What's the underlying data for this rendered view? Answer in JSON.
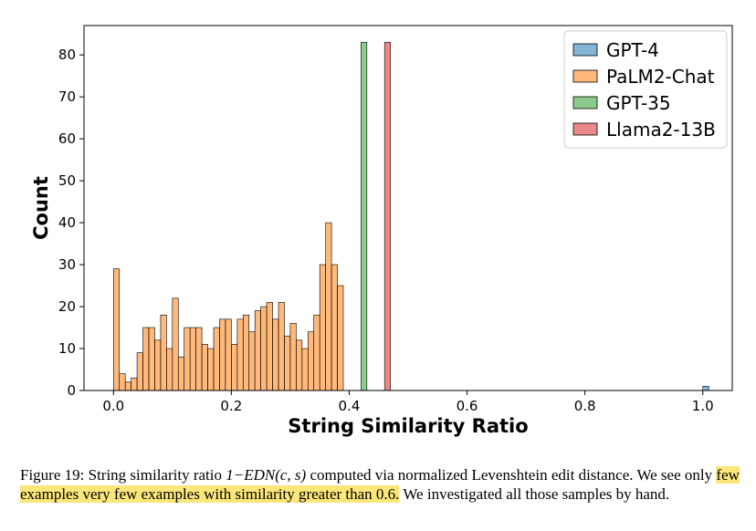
{
  "chart_data": {
    "type": "histogram",
    "xlabel": "String Similarity Ratio",
    "ylabel": "Count",
    "xlim": [
      -0.05,
      1.05
    ],
    "ylim": [
      0,
      87
    ],
    "xticks": [
      "0.0",
      "0.2",
      "0.4",
      "0.6",
      "0.8",
      "1.0"
    ],
    "yticks": [
      "0",
      "10",
      "20",
      "30",
      "40",
      "50",
      "60",
      "70",
      "80"
    ],
    "bin_start": 0.0,
    "bin_width": 0.01,
    "legend_position": "top-right",
    "series": [
      {
        "name": "GPT-4",
        "color": "#1f77b4",
        "values": [
          0,
          0,
          0,
          0,
          0,
          0,
          0,
          0,
          0,
          0,
          0,
          0,
          0,
          0,
          0,
          0,
          0,
          0,
          0,
          0,
          0,
          0,
          0,
          0,
          0,
          0,
          0,
          0,
          0,
          0,
          0,
          0,
          0,
          0,
          0,
          0,
          0,
          0,
          0,
          0,
          0,
          0,
          0,
          0,
          0,
          0,
          0,
          0,
          0,
          0,
          0,
          0,
          0,
          0,
          0,
          0,
          0,
          0,
          0,
          0,
          0,
          0,
          0,
          0,
          0,
          0,
          0,
          0,
          0,
          0,
          0,
          0,
          0,
          0,
          0,
          0,
          0,
          0,
          0,
          0,
          0,
          0,
          0,
          0,
          0,
          0,
          0,
          0,
          0,
          0,
          0,
          0,
          0,
          0,
          0,
          0,
          0,
          0,
          0,
          0,
          1
        ]
      },
      {
        "name": "PaLM2-Chat",
        "color": "#ff7f0e",
        "values": [
          29,
          4,
          2,
          3,
          9,
          15,
          15,
          12,
          18,
          10,
          22,
          8,
          15,
          15,
          15,
          11,
          10,
          15,
          17,
          17,
          11,
          17,
          18,
          14,
          19,
          20,
          21,
          17,
          21,
          13,
          16,
          12,
          10,
          14,
          18,
          30,
          40,
          30,
          25,
          0,
          0,
          0,
          0,
          0,
          0,
          0,
          0,
          0,
          0,
          0,
          0,
          0,
          0,
          0,
          0,
          0,
          0,
          0,
          0,
          0,
          0,
          0,
          0,
          0,
          0,
          0,
          0,
          0,
          0,
          0,
          0,
          0,
          0,
          0,
          0,
          0,
          0,
          0,
          0,
          0,
          0,
          0,
          0,
          0,
          0,
          0,
          0,
          0,
          0,
          0,
          0,
          0,
          0,
          0,
          0,
          0,
          0,
          0,
          0,
          0,
          0
        ]
      },
      {
        "name": "GPT-35",
        "color": "#2ca02c",
        "values": [
          0,
          0,
          0,
          0,
          0,
          0,
          0,
          0,
          0,
          0,
          0,
          0,
          0,
          0,
          0,
          0,
          0,
          0,
          0,
          0,
          0,
          0,
          0,
          0,
          0,
          0,
          0,
          0,
          0,
          0,
          0,
          0,
          0,
          0,
          0,
          0,
          0,
          0,
          0,
          0,
          0,
          0,
          83,
          0,
          0,
          0,
          0,
          0,
          0,
          0,
          0,
          0,
          0,
          0,
          0,
          0,
          0,
          0,
          0,
          0,
          0,
          0,
          0,
          0,
          0,
          0,
          0,
          0,
          0,
          0,
          0,
          0,
          0,
          0,
          0,
          0,
          0,
          0,
          0,
          0,
          0,
          0,
          0,
          0,
          0,
          0,
          0,
          0,
          0,
          0,
          0,
          0,
          0,
          0,
          0,
          0,
          0,
          0,
          0,
          0,
          0
        ]
      },
      {
        "name": "Llama2-13B",
        "color": "#d62728",
        "values": [
          0,
          0,
          0,
          0,
          0,
          0,
          0,
          0,
          0,
          0,
          0,
          0,
          0,
          0,
          0,
          0,
          0,
          0,
          0,
          0,
          0,
          0,
          0,
          0,
          0,
          0,
          0,
          0,
          0,
          0,
          0,
          0,
          0,
          0,
          0,
          0,
          0,
          0,
          0,
          0,
          0,
          0,
          0,
          0,
          0,
          0,
          83,
          0,
          0,
          0,
          0,
          0,
          0,
          0,
          0,
          0,
          0,
          0,
          0,
          0,
          0,
          0,
          0,
          0,
          0,
          0,
          0,
          0,
          0,
          0,
          0,
          0,
          0,
          0,
          0,
          0,
          0,
          0,
          0,
          0,
          0,
          0,
          0,
          0,
          0,
          0,
          0,
          0,
          0,
          0,
          0,
          0,
          0,
          0,
          0,
          0,
          0,
          0,
          0,
          0,
          0
        ]
      }
    ]
  },
  "caption": {
    "label": "Figure 19:",
    "text_before_math": " String similarity ratio ",
    "math": "1−EDN(c, s)",
    "text_after_math": " computed via normalized Levenshtein edit distance. We see only ",
    "highlight": "few examples very few examples with similarity greater than 0.6.",
    "text_end": " We investigated all those samples by hand."
  }
}
